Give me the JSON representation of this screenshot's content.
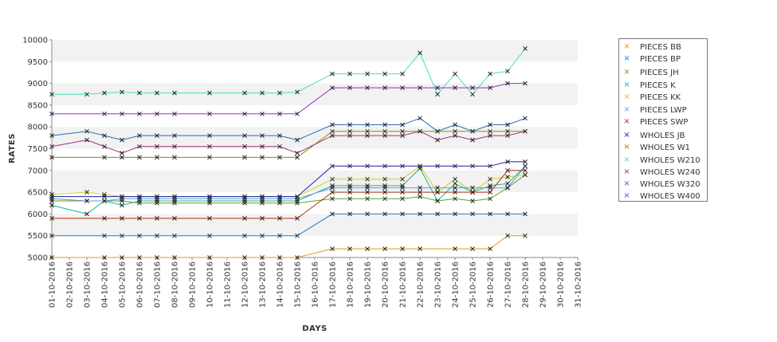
{
  "chart_data": {
    "type": "line",
    "title": "",
    "xlabel": "DAYS",
    "ylabel": "RATES",
    "ylim": [
      5000,
      10000
    ],
    "yticks": [
      5000,
      5500,
      6000,
      6500,
      7000,
      7500,
      8000,
      8500,
      9000,
      9500,
      10000
    ],
    "grid": "alternating horizontal bands",
    "legend_position": "right",
    "x": [
      "01-10-2016",
      "02-10-2016",
      "03-10-2016",
      "04-10-2016",
      "05-10-2016",
      "06-10-2016",
      "07-10-2016",
      "08-10-2016",
      "09-10-2016",
      "10-10-2016",
      "11-10-2016",
      "12-10-2016",
      "13-10-2016",
      "14-10-2016",
      "15-10-2016",
      "16-10-2016",
      "17-10-2016",
      "18-10-2016",
      "19-10-2016",
      "20-10-2016",
      "21-10-2016",
      "22-10-2016",
      "23-10-2016",
      "24-10-2016",
      "25-10-2016",
      "26-10-2016",
      "27-10-2016",
      "28-10-2016",
      "29-10-2016",
      "30-10-2016",
      "31-10-2016"
    ],
    "series": [
      {
        "name": "PIECES BB",
        "color": "#e39a1a",
        "values": [
          5000,
          null,
          null,
          5000,
          5000,
          5000,
          5000,
          5000,
          null,
          5000,
          null,
          5000,
          5000,
          5000,
          5000,
          null,
          5200,
          5200,
          5200,
          5200,
          5200,
          5200,
          null,
          5200,
          5200,
          5200,
          5500,
          5500,
          null,
          null,
          null
        ]
      },
      {
        "name": "PIECES BP",
        "color": "#1a7fc7",
        "values": [
          5500,
          null,
          null,
          5500,
          5500,
          5500,
          5500,
          5500,
          null,
          5500,
          null,
          5500,
          5500,
          5500,
          5500,
          null,
          6000,
          6000,
          6000,
          6000,
          6000,
          6000,
          6000,
          6000,
          6000,
          6000,
          6000,
          6000,
          null,
          null,
          null
        ]
      },
      {
        "name": "PIECES JH",
        "color": "#5aa02c",
        "values": [
          6300,
          null,
          6300,
          6300,
          6300,
          6250,
          6250,
          6250,
          null,
          6250,
          null,
          6250,
          6250,
          6250,
          6250,
          null,
          6350,
          6350,
          6350,
          6350,
          6350,
          6400,
          6300,
          6350,
          6300,
          6350,
          6600,
          6900,
          null,
          null,
          null
        ]
      },
      {
        "name": "PIECES K",
        "color": "#14b4a4",
        "values": [
          6200,
          null,
          6000,
          6300,
          6200,
          6300,
          6300,
          6300,
          null,
          6300,
          null,
          6300,
          6300,
          6300,
          6300,
          null,
          6650,
          6650,
          6650,
          6650,
          6650,
          7050,
          6300,
          6700,
          6500,
          6650,
          6700,
          7100,
          null,
          null,
          null
        ]
      },
      {
        "name": "PIECES KK",
        "color": "#cfcf20",
        "values": [
          6450,
          null,
          6500,
          6450,
          6400,
          6400,
          6400,
          6400,
          null,
          6400,
          null,
          6400,
          6400,
          6400,
          6400,
          null,
          6800,
          6800,
          6800,
          6800,
          6800,
          7100,
          6500,
          6800,
          6500,
          6800,
          6850,
          6900,
          null,
          null,
          null
        ]
      },
      {
        "name": "PIECES LWP",
        "color": "#6a9ad0",
        "values": [
          6350,
          null,
          6300,
          6300,
          6350,
          6350,
          6350,
          6350,
          null,
          6350,
          null,
          6350,
          6350,
          6350,
          6350,
          null,
          6600,
          6600,
          6600,
          6600,
          6600,
          6600,
          6600,
          6600,
          6600,
          6600,
          6600,
          7100,
          null,
          null,
          null
        ]
      },
      {
        "name": "PIECES SWP",
        "color": "#b0300a",
        "values": [
          5900,
          null,
          null,
          5900,
          5900,
          5900,
          5900,
          5900,
          null,
          5900,
          null,
          5900,
          5900,
          5900,
          5900,
          null,
          6500,
          6500,
          6500,
          6500,
          6500,
          6500,
          6500,
          6500,
          6500,
          6500,
          7000,
          7000,
          null,
          null,
          null
        ]
      },
      {
        "name": "WHOLES JB",
        "color": "#1a1ab0",
        "values": [
          6400,
          null,
          null,
          6400,
          6400,
          6400,
          6400,
          6400,
          null,
          6400,
          null,
          6400,
          6400,
          6400,
          6400,
          null,
          7100,
          7100,
          7100,
          7100,
          7100,
          7100,
          7100,
          7100,
          7100,
          7100,
          7200,
          7200,
          null,
          null,
          null
        ]
      },
      {
        "name": "WHOLES W1",
        "color": "#8a8a10",
        "values": [
          7300,
          null,
          null,
          7300,
          7300,
          7300,
          7300,
          7300,
          null,
          7300,
          null,
          7300,
          7300,
          7300,
          7300,
          null,
          7900,
          7900,
          7900,
          7900,
          7900,
          7900,
          7900,
          7900,
          7900,
          7900,
          7900,
          7900,
          null,
          null,
          null
        ]
      },
      {
        "name": "WHOLES W210",
        "color": "#40e0c0",
        "values": [
          8750,
          null,
          8750,
          8780,
          8800,
          8780,
          8780,
          8780,
          null,
          8780,
          null,
          8780,
          8780,
          8780,
          8800,
          null,
          9220,
          9220,
          9220,
          9220,
          9220,
          9700,
          8750,
          9220,
          8750,
          9220,
          9280,
          9800,
          null,
          null,
          null
        ]
      },
      {
        "name": "WHOLES W240",
        "color": "#a0307a",
        "values": [
          7550,
          null,
          7700,
          7550,
          7400,
          7550,
          7550,
          7550,
          null,
          7550,
          null,
          7550,
          7550,
          7550,
          7400,
          null,
          7800,
          7800,
          7800,
          7800,
          7800,
          7900,
          7700,
          7800,
          7700,
          7800,
          7800,
          7900,
          null,
          null,
          null
        ]
      },
      {
        "name": "WHOLES W320",
        "color": "#2a6ab0",
        "values": [
          7800,
          null,
          7900,
          7800,
          7700,
          7800,
          7800,
          7800,
          null,
          7800,
          null,
          7800,
          7800,
          7800,
          7700,
          null,
          8050,
          8050,
          8050,
          8050,
          8050,
          8200,
          7900,
          8050,
          7900,
          8050,
          8050,
          8200,
          null,
          null,
          null
        ]
      },
      {
        "name": "WHOLES W400",
        "color": "#9a2ad0",
        "values": [
          8300,
          null,
          null,
          8300,
          8300,
          8300,
          8300,
          8300,
          null,
          8300,
          null,
          8300,
          8300,
          8300,
          8300,
          null,
          8900,
          8900,
          8900,
          8900,
          8900,
          8900,
          8900,
          8900,
          8900,
          8900,
          9000,
          9000,
          null,
          null,
          null
        ]
      }
    ]
  }
}
